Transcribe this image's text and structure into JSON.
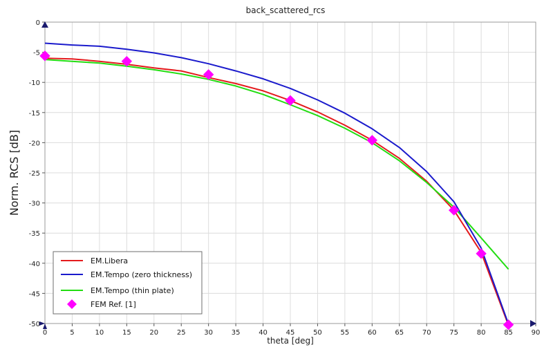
{
  "chart_data": {
    "type": "line",
    "title": "back_scattered_rcs",
    "xlabel": "theta [deg]",
    "ylabel": "Norm. RCS [dB]",
    "xlim": [
      0,
      90
    ],
    "ylim": [
      -50,
      0
    ],
    "xticks": [
      "0",
      "5",
      "10",
      "15",
      "20",
      "25",
      "30",
      "35",
      "40",
      "45",
      "50",
      "55",
      "60",
      "65",
      "70",
      "75",
      "80",
      "85",
      "90"
    ],
    "yticks": [
      "0",
      "-5",
      "-10",
      "-15",
      "-20",
      "-25",
      "-30",
      "-35",
      "-40",
      "-45",
      "-50"
    ],
    "grid": true,
    "legend_position": "bottom-left",
    "series": [
      {
        "name": "EM.Libera",
        "color": "#e41a1c",
        "kind": "line",
        "x": [
          0,
          5,
          10,
          15,
          20,
          25,
          30,
          35,
          40,
          45,
          50,
          55,
          60,
          65,
          70,
          75,
          80,
          85
        ],
        "y": [
          -6.0,
          -6.1,
          -6.5,
          -7.0,
          -7.6,
          -8.1,
          -9.2,
          -10.2,
          -11.4,
          -13.0,
          -14.9,
          -17.1,
          -19.6,
          -22.6,
          -26.4,
          -31.2,
          -38.2,
          -50.3
        ]
      },
      {
        "name": "EM.Tempo (zero thickness)",
        "color": "#1a1acc",
        "kind": "line",
        "x": [
          0,
          5,
          10,
          15,
          20,
          25,
          30,
          35,
          40,
          45,
          50,
          55,
          60,
          65,
          70,
          75,
          80,
          85
        ],
        "y": [
          -3.5,
          -3.8,
          -4.0,
          -4.5,
          -5.1,
          -5.9,
          -6.9,
          -8.1,
          -9.4,
          -11.0,
          -12.9,
          -15.1,
          -17.7,
          -20.8,
          -24.8,
          -29.8,
          -37.5,
          -50.1
        ]
      },
      {
        "name": "EM.Tempo (thin plate)",
        "color": "#22dd11",
        "kind": "line",
        "x": [
          0,
          5,
          10,
          15,
          20,
          25,
          30,
          35,
          40,
          45,
          50,
          55,
          60,
          65,
          70,
          75,
          80,
          85
        ],
        "y": [
          -6.2,
          -6.5,
          -6.8,
          -7.3,
          -7.9,
          -8.6,
          -9.5,
          -10.6,
          -12.0,
          -13.7,
          -15.5,
          -17.6,
          -20.0,
          -23.0,
          -26.6,
          -30.7,
          -35.8,
          -41.0
        ]
      },
      {
        "name": "FEM Ref. [1]",
        "color": "#ff00ff",
        "kind": "marker",
        "marker": "diamond",
        "x": [
          0,
          15,
          30,
          45,
          60,
          75,
          80,
          85
        ],
        "y": [
          -5.6,
          -6.5,
          -8.7,
          -13.0,
          -19.6,
          -31.2,
          -38.4,
          -50.2
        ]
      }
    ]
  }
}
